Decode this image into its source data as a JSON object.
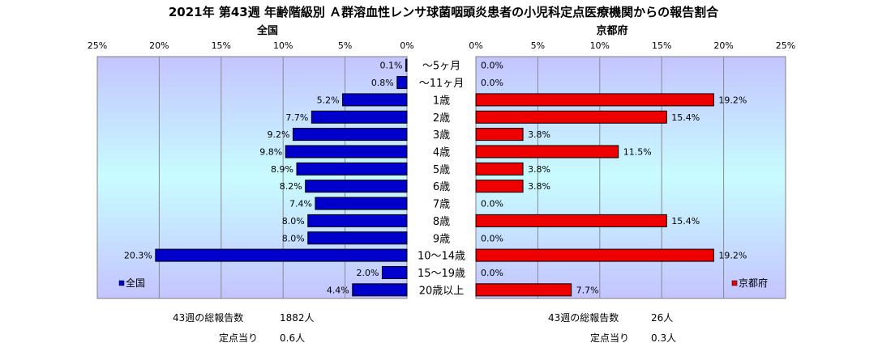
{
  "chart_data": {
    "type": "bar",
    "title": "2021年 第43週 年齢階級別 Ａ群溶血性レンサ球菌咽頭炎患者の小児科定点医療機関からの報告割合",
    "categories": [
      "～5ヶ月",
      "～11ヶ月",
      "1歳",
      "2歳",
      "3歳",
      "4歳",
      "5歳",
      "6歳",
      "7歳",
      "8歳",
      "9歳",
      "10～14歳",
      "15～19歳",
      "20歳以上"
    ],
    "axis_ticks": [
      "25%",
      "20%",
      "15%",
      "10%",
      "5%",
      "0%"
    ],
    "axis_ticks_right": [
      "0%",
      "5%",
      "10%",
      "15%",
      "20%",
      "25%"
    ],
    "xlim": [
      0,
      25
    ],
    "grid": true,
    "series": [
      {
        "name": "全国",
        "side": "left",
        "color": "#0000cc",
        "legend_position": "bottom-left",
        "values": [
          0.1,
          0.8,
          5.2,
          7.7,
          9.2,
          9.8,
          8.9,
          8.2,
          7.4,
          8.0,
          8.0,
          20.3,
          2.0,
          4.4
        ],
        "labels": [
          "0.1%",
          "0.8%",
          "5.2%",
          "7.7%",
          "9.2%",
          "9.8%",
          "8.9%",
          "8.2%",
          "7.4%",
          "8.0%",
          "8.0%",
          "20.3%",
          "2.0%",
          "4.4%"
        ]
      },
      {
        "name": "京都府",
        "side": "right",
        "color": "#ee0000",
        "legend_position": "bottom-right",
        "values": [
          0.0,
          0.0,
          19.2,
          15.4,
          3.8,
          11.5,
          3.8,
          3.8,
          0.0,
          15.4,
          0.0,
          19.2,
          0.0,
          7.7
        ],
        "labels": [
          "0.0%",
          "0.0%",
          "19.2%",
          "15.4%",
          "3.8%",
          "11.5%",
          "3.8%",
          "3.8%",
          "0.0%",
          "15.4%",
          "0.0%",
          "19.2%",
          "0.0%",
          "7.7%"
        ]
      }
    ]
  },
  "stats": {
    "national_total_label": "43週の総報告数",
    "national_total_value": "1882人",
    "national_per_site_label": "定点当り",
    "national_per_site_value": "0.6人",
    "kyoto_total_label": "43週の総報告数",
    "kyoto_total_value": "26人",
    "kyoto_per_site_label": "定点当り",
    "kyoto_per_site_value": "0.3人"
  },
  "colors": {
    "plot_gradient_edge": "#c4c4ff",
    "plot_gradient_mid": "#c8fcff",
    "gridline": "#8a8a8a"
  }
}
